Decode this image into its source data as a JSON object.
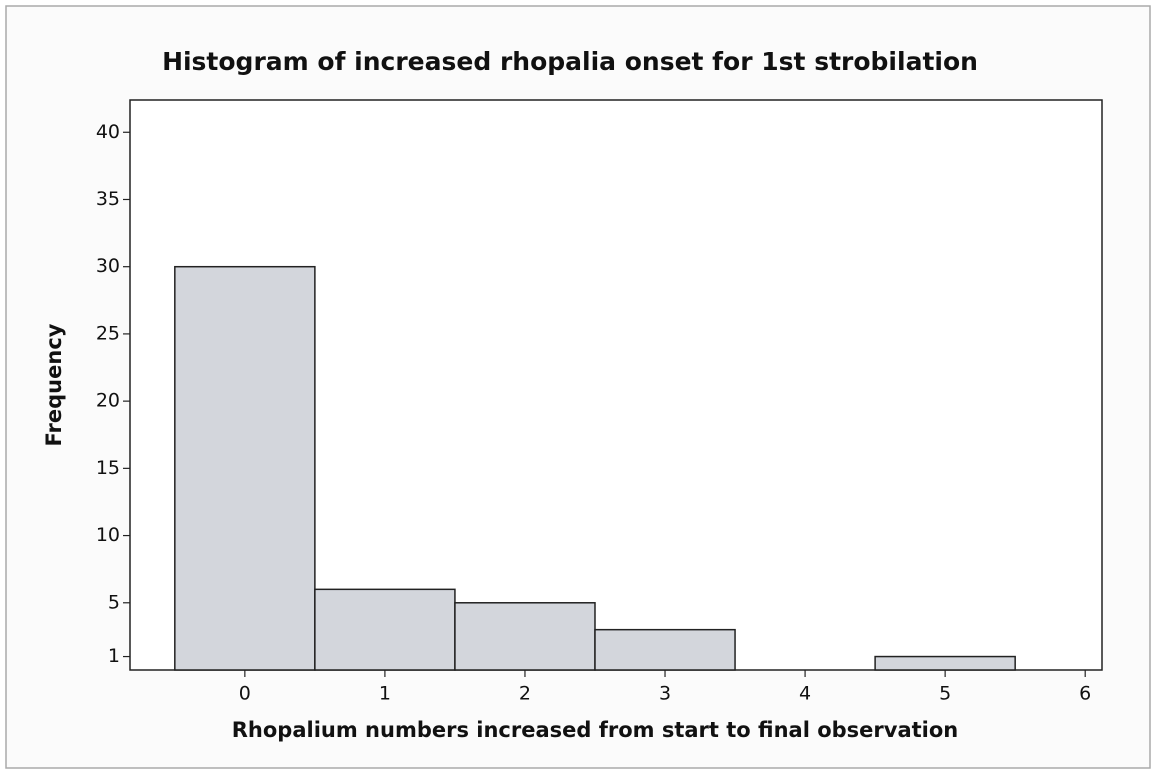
{
  "chart_data": {
    "type": "histogram",
    "title": "Histogram of increased rhopalia onset for 1st strobilation",
    "xlabel": "Rhopalium numbers increased from start to final observation",
    "ylabel": "Frequency",
    "bins": [
      -0.5,
      0.5,
      1.5,
      2.5,
      3.5,
      4.5,
      5.5
    ],
    "counts": [
      30,
      6,
      5,
      3,
      0,
      1
    ],
    "color": "#d3d6dc",
    "xlim": [
      -0.82,
      6.12
    ],
    "xticks": [
      0,
      1,
      2,
      3,
      4,
      5,
      6
    ],
    "ylim": [
      0,
      42.4
    ],
    "yticks": [
      1,
      5,
      10,
      15,
      20,
      25,
      30,
      35,
      40
    ]
  }
}
